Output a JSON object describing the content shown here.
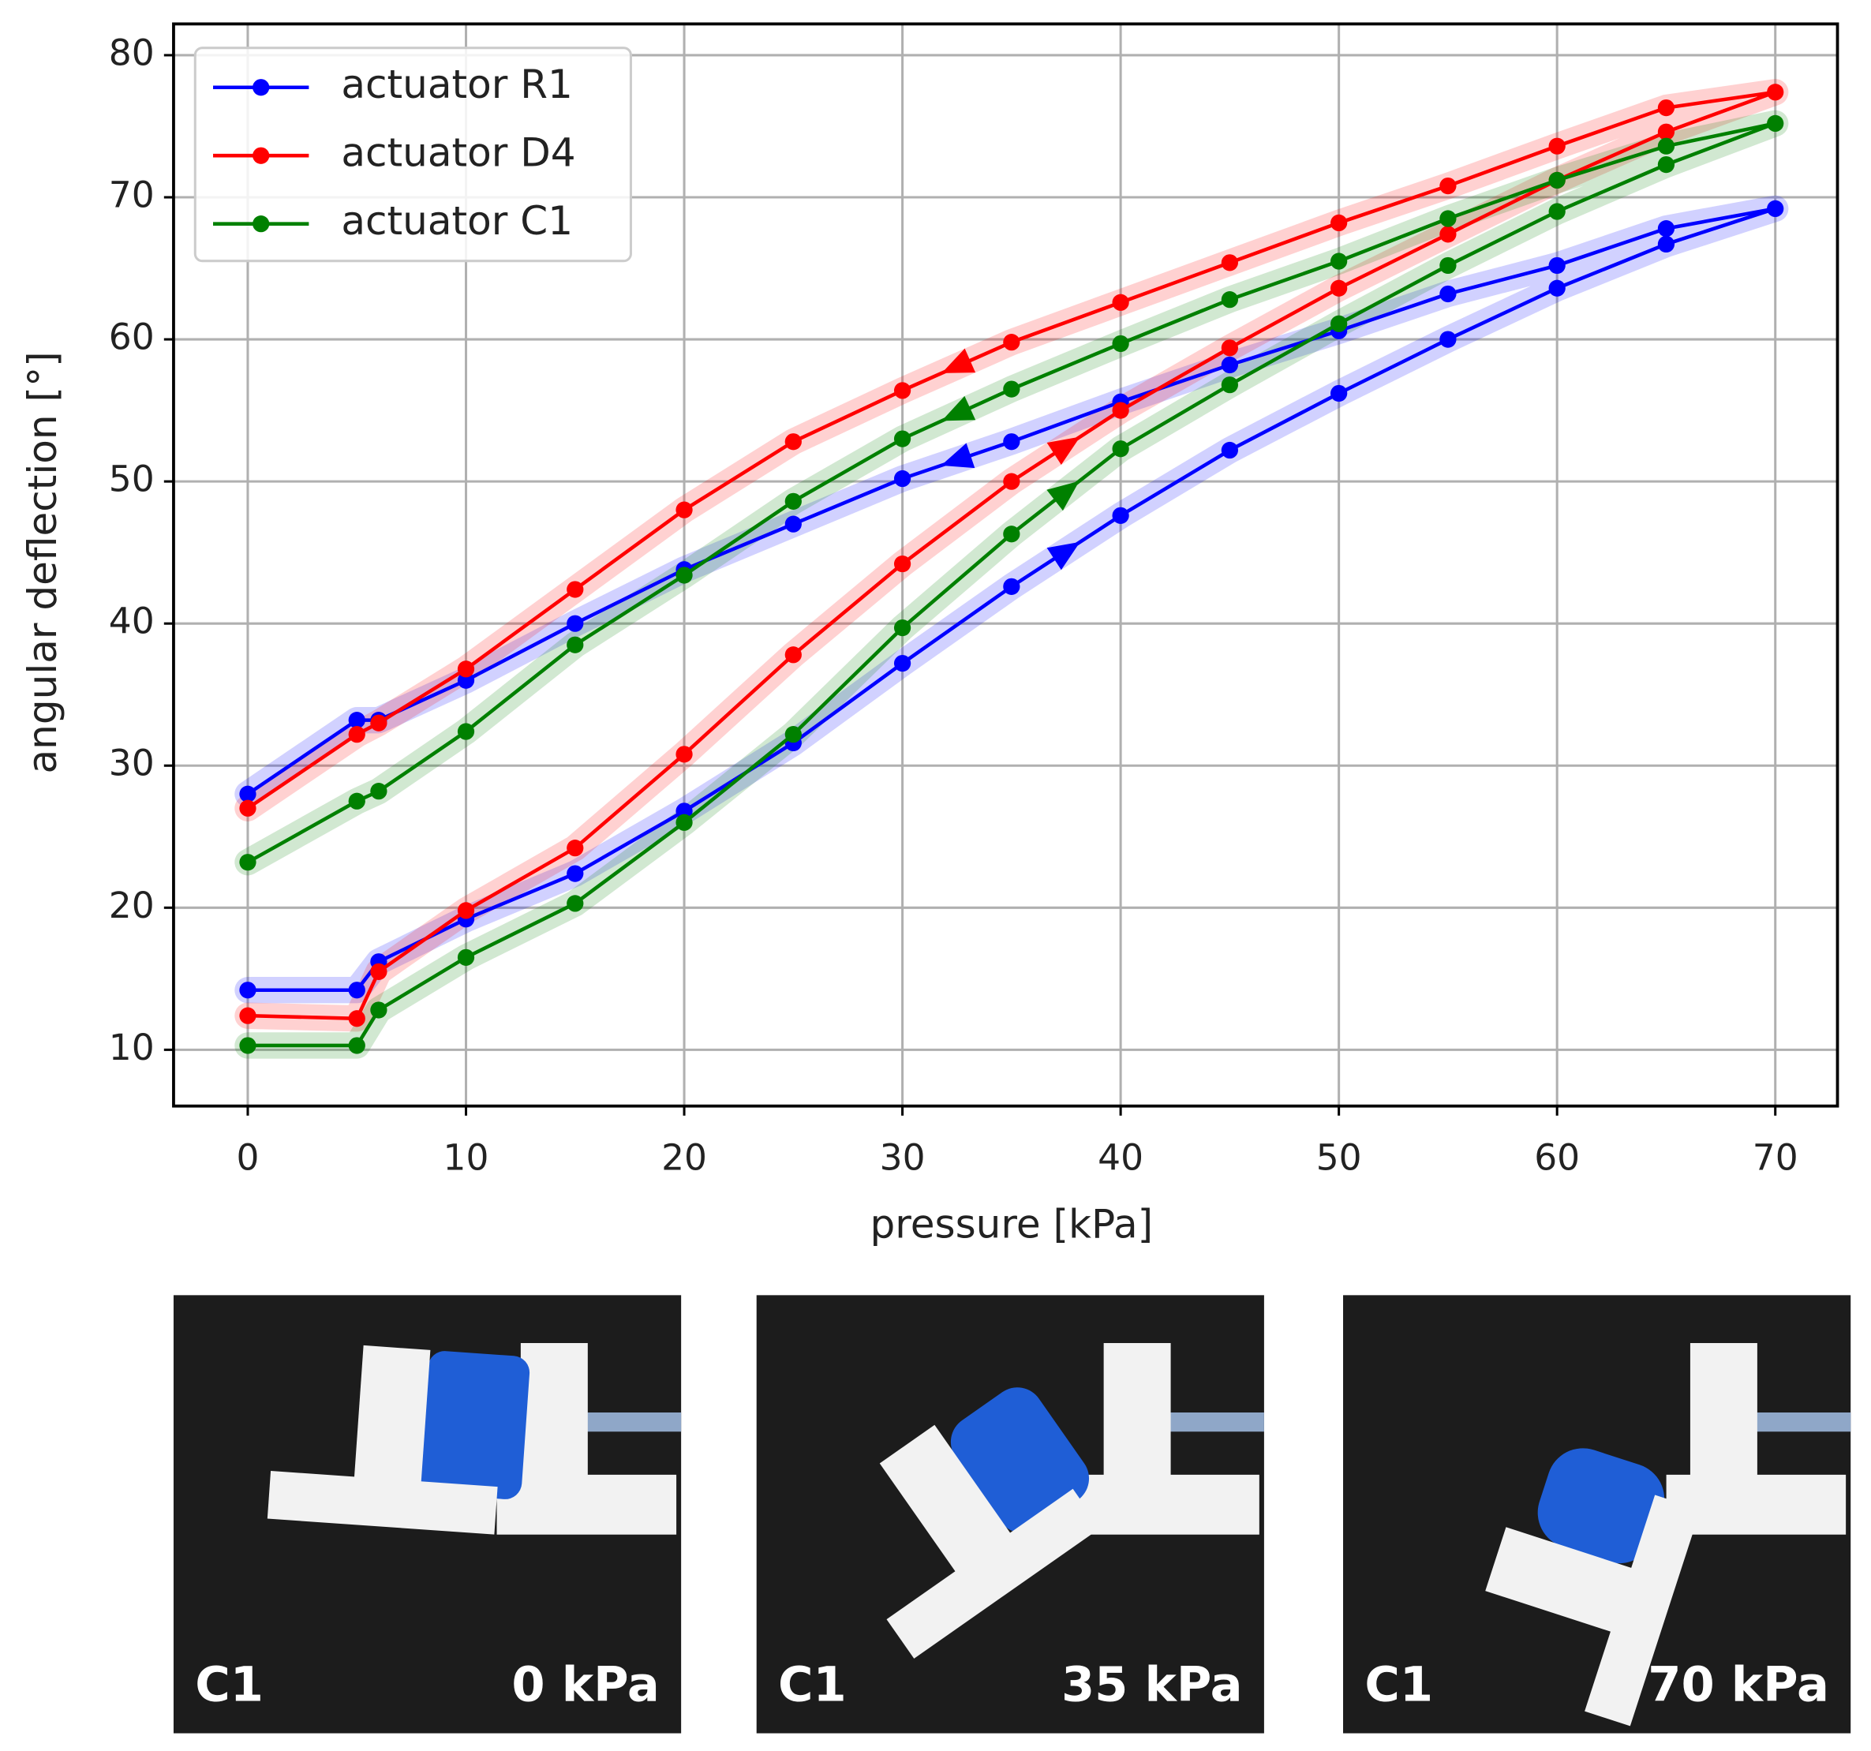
{
  "chart_data": {
    "type": "line",
    "xlabel": "pressure [kPa]",
    "ylabel": "angular deflection [°]",
    "x": [
      0,
      5,
      6,
      10,
      15,
      20,
      25,
      30,
      35,
      40,
      45,
      50,
      55,
      60,
      65,
      70,
      65,
      60,
      55,
      50,
      45,
      40,
      35,
      30,
      25,
      20,
      15,
      10,
      6,
      5,
      0
    ],
    "series": [
      {
        "name": "actuator R1",
        "color": "#0000ff",
        "values": [
          14.2,
          14.2,
          16.2,
          19.2,
          22.4,
          26.8,
          31.6,
          37.2,
          42.6,
          47.6,
          52.2,
          56.2,
          60.0,
          63.6,
          66.7,
          69.2,
          67.8,
          65.2,
          63.2,
          60.6,
          58.2,
          55.6,
          52.8,
          50.2,
          47.0,
          43.8,
          40.0,
          36.0,
          33.2,
          33.2,
          28.0
        ]
      },
      {
        "name": "actuator D4",
        "color": "#ff0000",
        "values": [
          12.4,
          12.2,
          15.5,
          19.8,
          24.2,
          30.8,
          37.8,
          44.2,
          50.0,
          55.0,
          59.4,
          63.6,
          67.4,
          71.2,
          74.6,
          77.4,
          76.3,
          73.6,
          70.8,
          68.2,
          65.4,
          62.6,
          59.8,
          56.4,
          52.8,
          48.0,
          42.4,
          36.8,
          33.0,
          32.2,
          27.0
        ]
      },
      {
        "name": "actuator C1",
        "color": "#008000",
        "values": [
          10.3,
          10.3,
          12.8,
          16.5,
          20.3,
          26.0,
          32.2,
          39.7,
          46.3,
          52.3,
          56.8,
          61.1,
          65.2,
          69.0,
          72.3,
          75.2,
          73.6,
          71.2,
          68.5,
          65.5,
          62.8,
          59.7,
          56.5,
          53.0,
          48.6,
          43.4,
          38.5,
          32.4,
          28.2,
          27.5,
          23.2
        ]
      }
    ],
    "xlim": [
      -3.4,
      72.85
    ],
    "ylim": [
      6.04,
      82.2
    ],
    "xticks": [
      0,
      10,
      20,
      30,
      40,
      50,
      60,
      70
    ],
    "yticks": [
      10,
      20,
      30,
      40,
      50,
      60,
      70,
      80
    ],
    "grid": true,
    "legend": "upper left"
  },
  "panels": [
    {
      "label": "C1",
      "pressure": "0 kPa"
    },
    {
      "label": "C1",
      "pressure": "35 kPa"
    },
    {
      "label": "C1",
      "pressure": "70 kPa"
    }
  ]
}
